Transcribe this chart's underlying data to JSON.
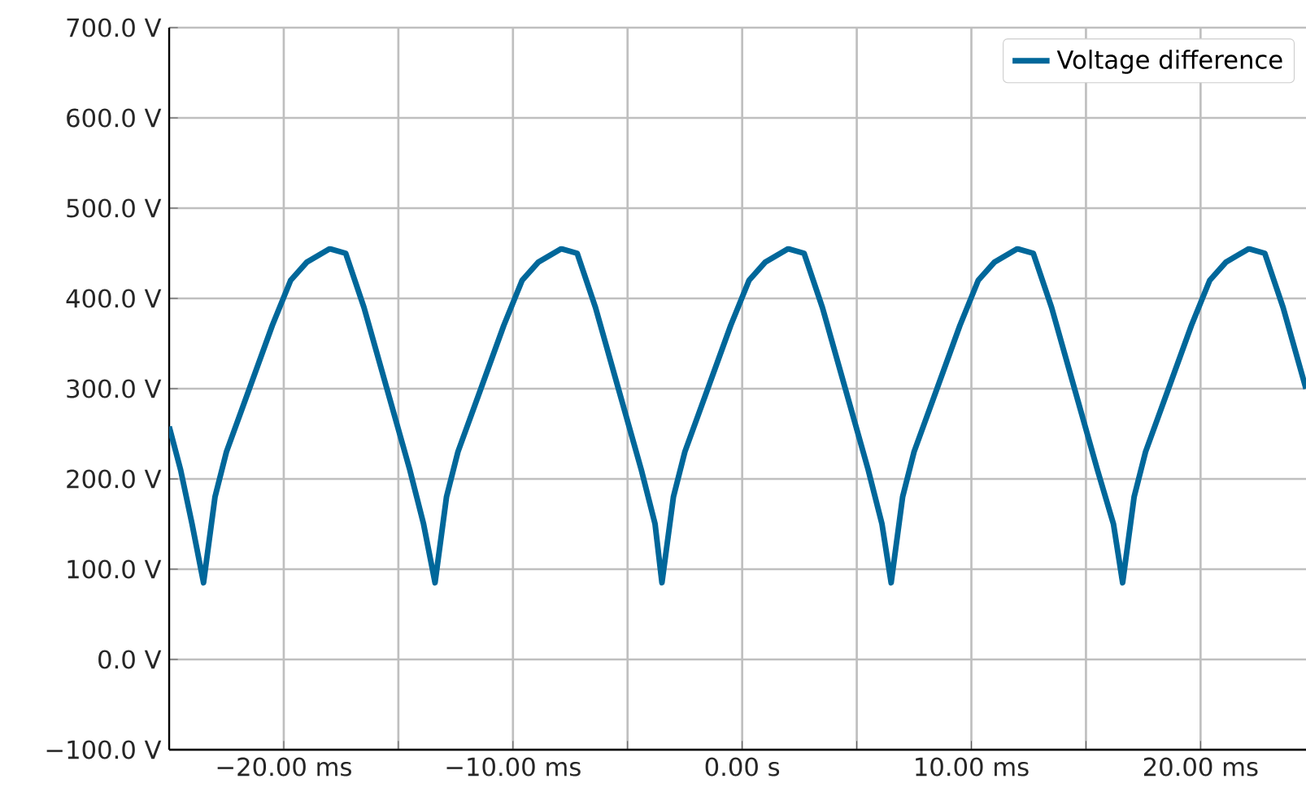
{
  "chart_data": {
    "type": "line",
    "legend": "top right",
    "grid": true,
    "xlim": [
      -25,
      24.6
    ],
    "ylim": [
      -100,
      700
    ],
    "xticks": [
      {
        "value": -20,
        "label": "−20.00 ms"
      },
      {
        "value": -15,
        "label": null
      },
      {
        "value": -10,
        "label": "−10.00 ms"
      },
      {
        "value": -5,
        "label": null
      },
      {
        "value": 0,
        "label": "0.00 s"
      },
      {
        "value": 5,
        "label": null
      },
      {
        "value": 10,
        "label": "10.00 ms"
      },
      {
        "value": 15,
        "label": null
      },
      {
        "value": 20,
        "label": "20.00 ms"
      }
    ],
    "yticks": [
      {
        "value": -100,
        "label": "−100.0 V"
      },
      {
        "value": 0,
        "label": "0.0 V"
      },
      {
        "value": 100,
        "label": "100.0 V"
      },
      {
        "value": 200,
        "label": "200.0 V"
      },
      {
        "value": 300,
        "label": "300.0 V"
      },
      {
        "value": 400,
        "label": "400.0 V"
      },
      {
        "value": 500,
        "label": "500.0 V"
      },
      {
        "value": 600,
        "label": "600.0 V"
      },
      {
        "value": 700,
        "label": "700.0 V"
      }
    ],
    "series": [
      {
        "name": "Voltage difference",
        "color": "#00679a",
        "x": [
          -25,
          -24.5,
          -24,
          -23.5,
          -23,
          -22.5,
          -21.5,
          -20.5,
          -19.7,
          -19,
          -18,
          -17.3,
          -16.5,
          -15.5,
          -14.5,
          -13.9,
          -13.4,
          -12.9,
          -12.4,
          -11.4,
          -10.4,
          -9.6,
          -8.9,
          -7.9,
          -7.2,
          -6.4,
          -5.4,
          -4.4,
          -3.8,
          -3.5,
          -3,
          -2.5,
          -1.5,
          -0.5,
          0.3,
          1,
          2,
          2.7,
          3.5,
          4.5,
          5.5,
          6.1,
          6.5,
          7,
          7.5,
          8.5,
          9.5,
          10.3,
          11,
          12,
          12.7,
          13.5,
          14.5,
          15.5,
          16.2,
          16.6,
          17.1,
          17.6,
          18.6,
          19.6,
          20.4,
          21.1,
          22.1,
          22.8,
          23.6,
          24.6
        ],
        "values": [
          258,
          210,
          150,
          85,
          180,
          230,
          300,
          370,
          420,
          440,
          455,
          450,
          390,
          300,
          210,
          150,
          85,
          180,
          230,
          300,
          370,
          420,
          440,
          455,
          450,
          390,
          300,
          210,
          150,
          85,
          180,
          230,
          300,
          370,
          420,
          440,
          455,
          450,
          390,
          300,
          210,
          150,
          85,
          180,
          230,
          300,
          370,
          420,
          440,
          455,
          450,
          390,
          300,
          210,
          150,
          85,
          180,
          230,
          300,
          370,
          420,
          440,
          455,
          450,
          390,
          300
        ]
      }
    ]
  }
}
